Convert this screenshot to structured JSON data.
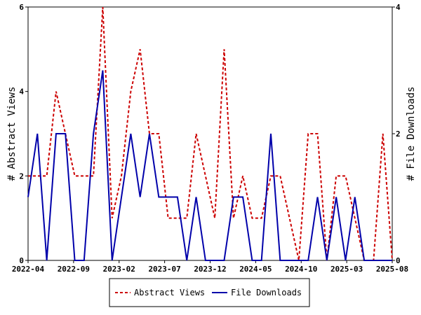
{
  "chart_data": {
    "type": "line",
    "x_tick_labels": [
      "2022-04",
      "2022-09",
      "2023-02",
      "2023-07",
      "2023-12",
      "2024-05",
      "2024-10",
      "2025-03",
      "2025-08"
    ],
    "y_left": {
      "label": "# Abstract Views",
      "lim": [
        0,
        6
      ],
      "ticks": [
        "0",
        "2",
        "4",
        "6"
      ]
    },
    "y_right": {
      "label": "# File Downloads",
      "lim": [
        0,
        4
      ],
      "ticks": [
        "0",
        "2",
        "4"
      ]
    },
    "grid": false,
    "legend_position": "bottom-center",
    "series": [
      {
        "name": "Abstract Views",
        "axis": "left",
        "color": "#cc0000",
        "style": "dashed",
        "values": [
          2,
          2,
          2,
          4,
          3,
          2,
          2,
          2,
          6,
          1,
          2,
          4,
          5,
          3,
          3,
          1,
          1,
          1,
          3,
          2,
          1,
          5,
          1,
          2,
          1,
          1,
          2,
          2,
          1,
          0,
          3,
          3,
          0,
          2,
          2,
          1,
          0,
          0,
          3,
          0
        ]
      },
      {
        "name": "File Downloads",
        "axis": "right",
        "color": "#0000aa",
        "style": "solid",
        "values": [
          1,
          2,
          0,
          2,
          2,
          0,
          0,
          2,
          3,
          0,
          1,
          2,
          1,
          2,
          1,
          1,
          1,
          0,
          1,
          0,
          0,
          0,
          1,
          1,
          0,
          0,
          2,
          0,
          0,
          0,
          0,
          1,
          0,
          1,
          0,
          1,
          0,
          0,
          0,
          0
        ]
      }
    ],
    "legend": [
      "Abstract Views",
      "File Downloads"
    ]
  }
}
